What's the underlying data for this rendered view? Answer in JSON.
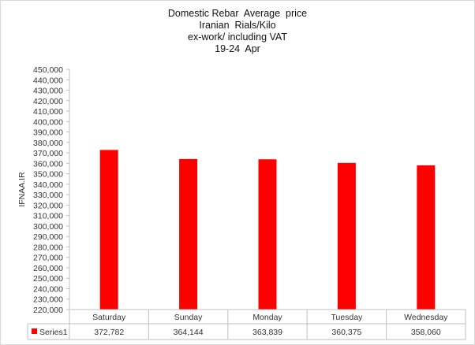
{
  "chart_data": {
    "type": "bar",
    "title": [
      "Domestic Rebar  Average  price",
      "Iranian  Rials/Kilo",
      "ex-work/ including VAT",
      "19-24  Apr"
    ],
    "ylabel": "IFNAA.IR",
    "xlabel": "",
    "categories": [
      "Saturday",
      "Sunday",
      "Monday",
      "Tuesday",
      "Wednesday"
    ],
    "series": [
      {
        "name": "Series1",
        "values": [
          372782,
          364144,
          363839,
          360375,
          358060
        ],
        "color": "#ff0000"
      }
    ],
    "data_table": {
      "legend_label": "Series1",
      "values": [
        "372,782",
        "364,144",
        "363,839",
        "360,375",
        "358,060"
      ]
    },
    "ylim": [
      220000,
      450000
    ],
    "ytick_step": 10000,
    "ytick_labels": [
      "220,000",
      "230,000",
      "240,000",
      "250,000",
      "260,000",
      "270,000",
      "280,000",
      "290,000",
      "300,000",
      "310,000",
      "320,000",
      "330,000",
      "340,000",
      "350,000",
      "360,000",
      "370,000",
      "380,000",
      "390,000",
      "400,000",
      "410,000",
      "420,000",
      "430,000",
      "440,000",
      "450,000"
    ],
    "grid": false,
    "legend": "data-table"
  }
}
